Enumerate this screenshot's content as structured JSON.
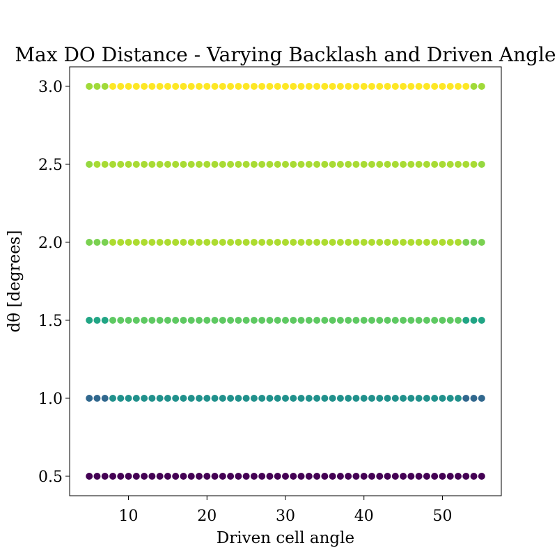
{
  "chart_data": {
    "type": "scatter",
    "title": "Max DO Distance - Varying Backlash and Driven Angle",
    "xlabel": "Driven cell angle",
    "ylabel": "dθ [degrees]",
    "xlim": [
      2.5,
      57.5
    ],
    "ylim": [
      0.375,
      3.125
    ],
    "xticks": [
      10,
      20,
      30,
      40,
      50
    ],
    "yticks": [
      0.5,
      1.0,
      1.5,
      2.0,
      2.5,
      3.0
    ],
    "ytick_labels": [
      "0.5",
      "1.0",
      "1.5",
      "2.0",
      "2.5",
      "3.0"
    ],
    "x_start": 5,
    "x_end": 55,
    "x_step": 1,
    "colormap": "viridis",
    "grid": false,
    "rows": [
      {
        "y": 0.5,
        "color": "#440154",
        "edge_color": "#440154",
        "edge_x": []
      },
      {
        "y": 1.0,
        "color": "#21918c",
        "edge_color": "#31688e",
        "edge_x": [
          5,
          6,
          7,
          53,
          54,
          55
        ]
      },
      {
        "y": 1.5,
        "color": "#5ec962",
        "edge_color": "#21a585",
        "edge_x": [
          5,
          6,
          7,
          53,
          54,
          55
        ]
      },
      {
        "y": 2.0,
        "color": "#addc30",
        "edge_color": "#7ad151",
        "edge_x": [
          5,
          6,
          7,
          53,
          54,
          55
        ]
      },
      {
        "y": 2.5,
        "color": "#a8db34",
        "edge_color": "#95d840",
        "edge_x": [
          5,
          55
        ]
      },
      {
        "y": 3.0,
        "color": "#fde725",
        "edge_color": "#a0da39",
        "edge_x": [
          5,
          6,
          7,
          54,
          55
        ]
      }
    ]
  }
}
